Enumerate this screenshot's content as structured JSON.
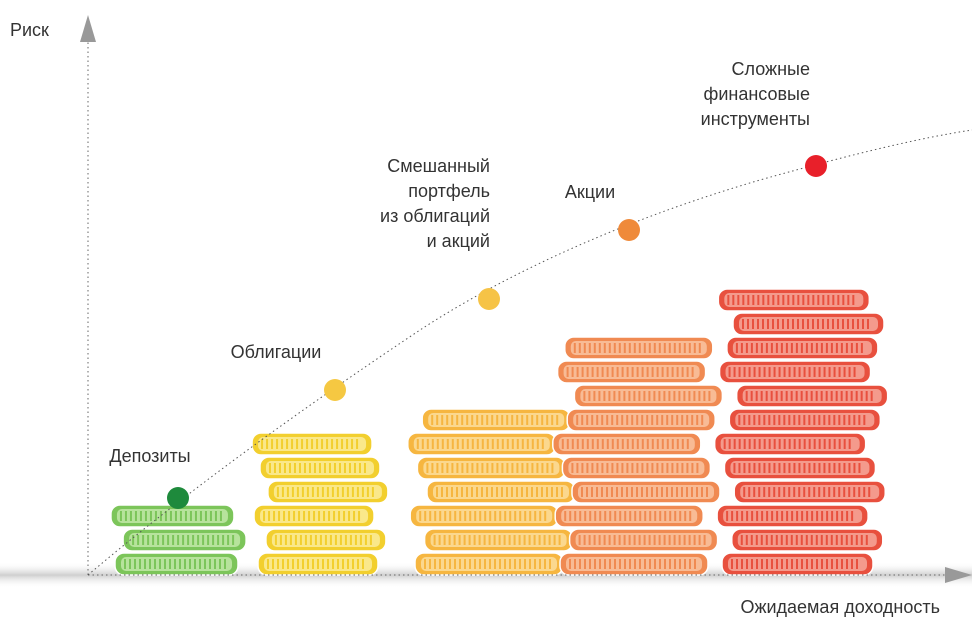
{
  "axes": {
    "y_label": "Риск",
    "x_label": "Ожидаемая доходность"
  },
  "points": [
    {
      "label_lines": [
        "Депозиты"
      ]
    },
    {
      "label_lines": [
        "Облигации"
      ]
    },
    {
      "label_lines": [
        "Смешанный",
        "портфель",
        "из облигаций",
        "и акций"
      ]
    },
    {
      "label_lines": [
        "Акции"
      ]
    },
    {
      "label_lines": [
        "Сложные",
        "финансовые",
        "инструменты"
      ]
    }
  ]
}
